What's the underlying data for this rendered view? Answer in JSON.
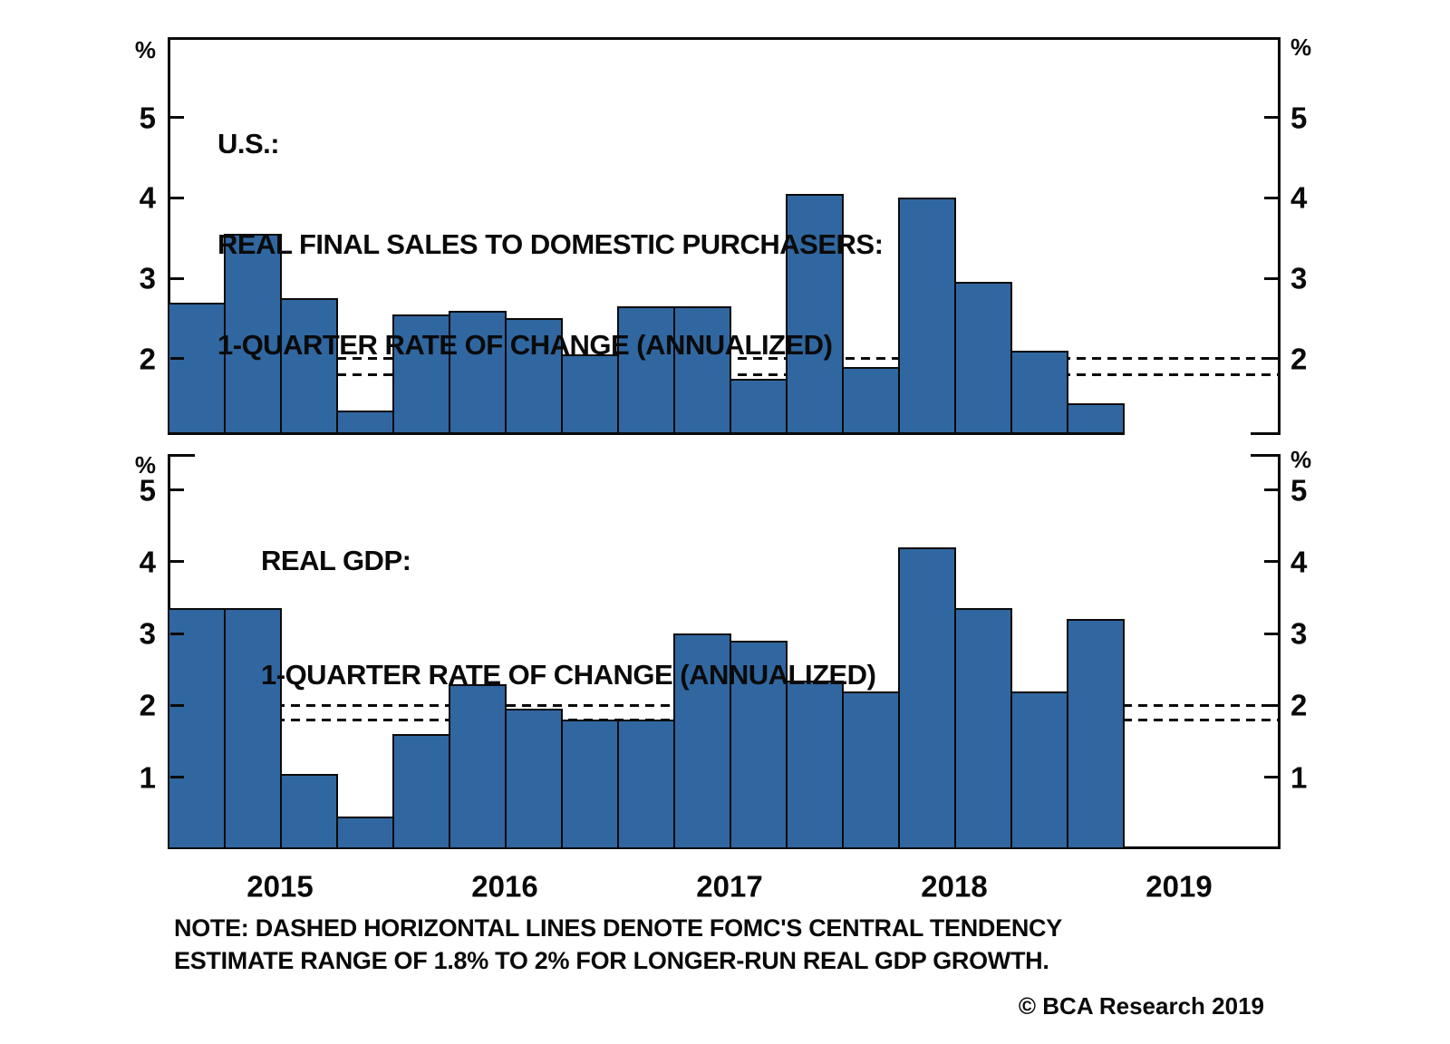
{
  "figure": {
    "background": "#ffffff",
    "bar_color": "#3067a0",
    "bar_border_color": "#0a0a0a",
    "axis_color": "#0a0a0a",
    "text_color": "#0a0a0a",
    "dash_color": "#0a0a0a"
  },
  "chart_data": [
    {
      "type": "bar",
      "panel": "top",
      "title_lines": [
        "U.S.:",
        "REAL FINAL SALES TO DOMESTIC PURCHASERS:",
        "1-QUARTER RATE OF CHANGE (ANNUALIZED)"
      ],
      "unit_label": "%",
      "categories": [
        "2015 Q1",
        "2015 Q2",
        "2015 Q3",
        "2015 Q4",
        "2016 Q1",
        "2016 Q2",
        "2016 Q3",
        "2016 Q4",
        "2017 Q1",
        "2017 Q2",
        "2017 Q3",
        "2017 Q4",
        "2018 Q1",
        "2018 Q2",
        "2018 Q3",
        "2018 Q4",
        "2019 Q1"
      ],
      "values": [
        2.7,
        3.55,
        2.75,
        1.35,
        2.55,
        2.6,
        2.5,
        2.05,
        2.65,
        2.65,
        1.75,
        4.05,
        1.9,
        4.0,
        2.95,
        2.1,
        1.45
      ],
      "yticks": [
        2,
        3,
        4,
        5
      ],
      "ylim": [
        1.05,
        6.0
      ],
      "reference_lines": [
        1.8,
        2.0
      ],
      "grid": false,
      "legend": false
    },
    {
      "type": "bar",
      "panel": "bottom",
      "title_lines": [
        "REAL GDP:",
        "1-QUARTER RATE OF CHANGE (ANNUALIZED)"
      ],
      "unit_label": "%",
      "categories": [
        "2015 Q1",
        "2015 Q2",
        "2015 Q3",
        "2015 Q4",
        "2016 Q1",
        "2016 Q2",
        "2016 Q3",
        "2016 Q4",
        "2017 Q1",
        "2017 Q2",
        "2017 Q3",
        "2017 Q4",
        "2018 Q1",
        "2018 Q2",
        "2018 Q3",
        "2018 Q4",
        "2019 Q1"
      ],
      "values": [
        3.35,
        3.35,
        1.05,
        0.45,
        1.6,
        2.3,
        1.95,
        1.8,
        1.8,
        3.0,
        2.9,
        2.35,
        2.2,
        4.2,
        3.35,
        2.2,
        3.2
      ],
      "yticks": [
        1,
        2,
        3,
        4,
        5
      ],
      "ylim": [
        0.0,
        5.5
      ],
      "reference_lines": [
        1.8,
        2.0
      ],
      "grid": false,
      "legend": false
    }
  ],
  "x_axis": {
    "year_labels": [
      "2015",
      "2016",
      "2017",
      "2018",
      "2019"
    ]
  },
  "note": {
    "line1": "NOTE: DASHED HORIZONTAL LINES DENOTE FOMC'S CENTRAL TENDENCY",
    "line2": "ESTIMATE RANGE OF 1.8% TO 2% FOR LONGER-RUN REAL GDP GROWTH."
  },
  "copyright": "© BCA Research 2019"
}
